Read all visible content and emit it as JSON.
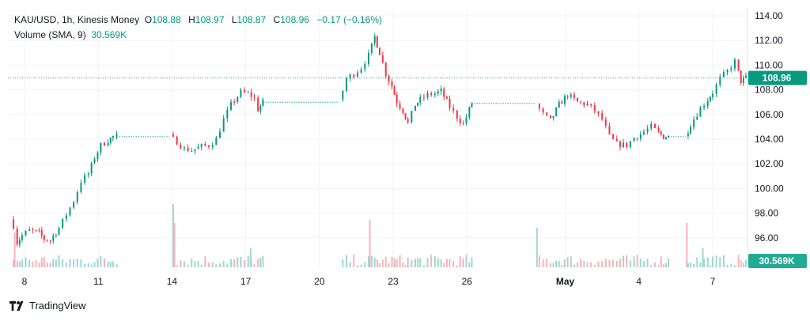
{
  "legend": {
    "symbol": "KAU/USD, 1h, Kinesis Money",
    "o_label": "O",
    "o_value": "108.88",
    "h_label": "H",
    "h_value": "108.97",
    "l_label": "L",
    "l_value": "108.87",
    "c_label": "C",
    "c_value": "108.96",
    "change": "−0.17 (−0.16%)",
    "volume_label": "Volume (SMA, 9)",
    "volume_value": "30.569K"
  },
  "brand": {
    "name": "TradingView",
    "icon": "tradingview-logo-icon"
  },
  "colors": {
    "up": "#089981",
    "down": "#f23645",
    "grid": "#f0f3fa",
    "axis_text": "#131722",
    "volume_up": "#9fd8cf",
    "volume_down": "#f5b3b9"
  },
  "chart_data": {
    "type": "candlestick",
    "title": "",
    "ylim": [
      94.6,
      114.8
    ],
    "y_ticks": [
      "114.00",
      "112.00",
      "110.00",
      "108.00",
      "106.00",
      "104.00",
      "102.00",
      "100.00",
      "98.00",
      "96.00"
    ],
    "x_ticks": [
      {
        "label": "8",
        "day": 8,
        "bold": false
      },
      {
        "label": "11",
        "day": 11,
        "bold": false
      },
      {
        "label": "14",
        "day": 14,
        "bold": false
      },
      {
        "label": "17",
        "day": 17,
        "bold": false
      },
      {
        "label": "20",
        "day": 20,
        "bold": false
      },
      {
        "label": "23",
        "day": 23,
        "bold": false
      },
      {
        "label": "26",
        "day": 26,
        "bold": false
      },
      {
        "label": "May",
        "day": 30,
        "bold": true
      },
      {
        "label": "4",
        "day": 33,
        "bold": false
      },
      {
        "label": "7",
        "day": 36,
        "bold": false
      }
    ],
    "last_price": {
      "value": 108.96,
      "label": "108.96"
    },
    "volume_sma_label": "30.569K",
    "price_path": [
      {
        "day": 7.45,
        "price": 97.5
      },
      {
        "day": 7.55,
        "price": 97.0
      },
      {
        "day": 7.7,
        "price": 95.6
      },
      {
        "day": 7.9,
        "price": 96.2
      },
      {
        "day": 8.2,
        "price": 96.6
      },
      {
        "day": 8.6,
        "price": 96.4
      },
      {
        "day": 8.8,
        "price": 95.9
      },
      {
        "day": 9.05,
        "price": 95.8
      },
      {
        "day": 9.4,
        "price": 96.8
      },
      {
        "day": 9.7,
        "price": 97.9
      },
      {
        "day": 10.0,
        "price": 99.0
      },
      {
        "day": 10.3,
        "price": 100.6
      },
      {
        "day": 10.6,
        "price": 101.2
      },
      {
        "day": 10.85,
        "price": 102.5
      },
      {
        "day": 11.1,
        "price": 103.5
      },
      {
        "day": 11.4,
        "price": 103.9
      },
      {
        "day": 11.6,
        "price": 104.2
      },
      {
        "day": 11.75,
        "price": 104.2
      },
      {
        "day": 13.9,
        "price": 104.2
      },
      {
        "day": 14.2,
        "price": 103.8
      },
      {
        "day": 14.5,
        "price": 103.2
      },
      {
        "day": 14.8,
        "price": 103.1
      },
      {
        "day": 15.2,
        "price": 103.4
      },
      {
        "day": 15.5,
        "price": 103.5
      },
      {
        "day": 15.8,
        "price": 104.0
      },
      {
        "day": 16.1,
        "price": 105.6
      },
      {
        "day": 16.4,
        "price": 106.8
      },
      {
        "day": 16.8,
        "price": 107.8
      },
      {
        "day": 17.1,
        "price": 107.7
      },
      {
        "day": 17.35,
        "price": 107.3
      },
      {
        "day": 17.5,
        "price": 106.4
      },
      {
        "day": 17.7,
        "price": 107.0
      },
      {
        "day": 20.8,
        "price": 107.0
      },
      {
        "day": 21.1,
        "price": 108.9
      },
      {
        "day": 21.4,
        "price": 109.3
      },
      {
        "day": 21.7,
        "price": 109.8
      },
      {
        "day": 22.0,
        "price": 110.8
      },
      {
        "day": 22.25,
        "price": 112.3
      },
      {
        "day": 22.45,
        "price": 111.0
      },
      {
        "day": 22.7,
        "price": 109.3
      },
      {
        "day": 22.95,
        "price": 108.3
      },
      {
        "day": 23.15,
        "price": 107.0
      },
      {
        "day": 23.4,
        "price": 106.3
      },
      {
        "day": 23.6,
        "price": 105.3
      },
      {
        "day": 23.9,
        "price": 106.8
      },
      {
        "day": 24.1,
        "price": 107.2
      },
      {
        "day": 24.4,
        "price": 107.6
      },
      {
        "day": 24.7,
        "price": 107.7
      },
      {
        "day": 24.95,
        "price": 107.9
      },
      {
        "day": 25.3,
        "price": 106.6
      },
      {
        "day": 25.6,
        "price": 105.8
      },
      {
        "day": 25.85,
        "price": 105.2
      },
      {
        "day": 26.1,
        "price": 106.4
      },
      {
        "day": 26.2,
        "price": 106.9
      },
      {
        "day": 28.8,
        "price": 106.9
      },
      {
        "day": 29.1,
        "price": 106.0
      },
      {
        "day": 29.4,
        "price": 105.5
      },
      {
        "day": 29.75,
        "price": 106.8
      },
      {
        "day": 30.1,
        "price": 107.6
      },
      {
        "day": 30.5,
        "price": 107.0
      },
      {
        "day": 30.9,
        "price": 106.8
      },
      {
        "day": 31.2,
        "price": 106.3
      },
      {
        "day": 31.5,
        "price": 105.6
      },
      {
        "day": 31.8,
        "price": 104.2
      },
      {
        "day": 32.1,
        "price": 103.6
      },
      {
        "day": 32.5,
        "price": 103.5
      },
      {
        "day": 32.8,
        "price": 104.1
      },
      {
        "day": 33.2,
        "price": 104.6
      },
      {
        "day": 33.5,
        "price": 105.0
      },
      {
        "day": 33.8,
        "price": 104.5
      },
      {
        "day": 34.0,
        "price": 104.2
      },
      {
        "day": 34.2,
        "price": 104.2
      },
      {
        "day": 34.9,
        "price": 104.2
      },
      {
        "day": 35.1,
        "price": 105.2
      },
      {
        "day": 35.5,
        "price": 106.5
      },
      {
        "day": 35.8,
        "price": 107.2
      },
      {
        "day": 36.0,
        "price": 107.8
      },
      {
        "day": 36.3,
        "price": 108.9
      },
      {
        "day": 36.6,
        "price": 109.5
      },
      {
        "day": 36.9,
        "price": 110.3
      },
      {
        "day": 37.05,
        "price": 109.4
      },
      {
        "day": 37.15,
        "price": 108.7
      },
      {
        "day": 37.35,
        "price": 108.96
      }
    ],
    "flat_segments": [
      {
        "start_day": 11.75,
        "end_day": 13.9,
        "price": 104.2
      },
      {
        "start_day": 17.7,
        "end_day": 20.8,
        "price": 107.0
      },
      {
        "start_day": 26.2,
        "end_day": 28.8,
        "price": 106.9
      },
      {
        "start_day": 34.2,
        "end_day": 34.9,
        "price": 104.2
      }
    ],
    "volume_spikes": [
      {
        "day": 7.6,
        "level": 0.55
      },
      {
        "day": 14.05,
        "level": 1.0
      },
      {
        "day": 14.1,
        "level": 0.7
      },
      {
        "day": 17.2,
        "level": 0.3
      },
      {
        "day": 22.05,
        "level": 0.75
      },
      {
        "day": 28.85,
        "level": 0.62
      },
      {
        "day": 34.95,
        "level": 0.7
      },
      {
        "day": 35.6,
        "level": 0.3
      }
    ]
  }
}
